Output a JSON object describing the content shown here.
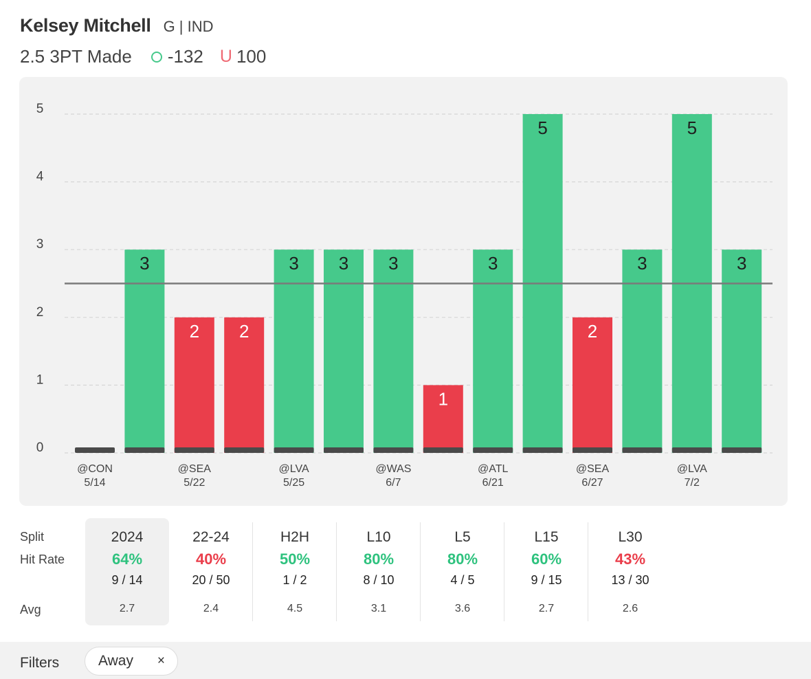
{
  "header": {
    "player_name": "Kelsey Mitchell",
    "position_team": "G | IND",
    "prop": "2.5 3PT Made",
    "over_odds": "-132",
    "under_icon": "U",
    "under_odds": "100"
  },
  "colors": {
    "over": "#46c98b",
    "under": "#ea3e4b",
    "over_text": "#2ec27e",
    "under_text": "#ea3e4b",
    "baseline_tick": "#4a4a4a",
    "line": "#7a7a7a",
    "grid": "#d6d6d6"
  },
  "chart_data": {
    "type": "bar",
    "title": "2.5 3PT Made",
    "prop_line": 2.5,
    "ylim": [
      0,
      5
    ],
    "yticks": [
      "0",
      "1",
      "2",
      "3",
      "4",
      "5"
    ],
    "grid": true,
    "categories": [
      "@CON 5/14",
      "",
      "@SEA 5/22",
      "",
      "@LVA 5/25",
      "",
      "@WAS 6/7",
      "",
      "@ATL 6/21",
      "",
      "@SEA 6/27",
      "",
      "@LVA 7/2",
      ""
    ],
    "tick_labels": [
      {
        "opp": "@CON",
        "date": "5/14"
      },
      {
        "opp": "",
        "date": ""
      },
      {
        "opp": "@SEA",
        "date": "5/22"
      },
      {
        "opp": "",
        "date": ""
      },
      {
        "opp": "@LVA",
        "date": "5/25"
      },
      {
        "opp": "",
        "date": ""
      },
      {
        "opp": "@WAS",
        "date": "6/7"
      },
      {
        "opp": "",
        "date": ""
      },
      {
        "opp": "@ATL",
        "date": "6/21"
      },
      {
        "opp": "",
        "date": ""
      },
      {
        "opp": "@SEA",
        "date": "6/27"
      },
      {
        "opp": "",
        "date": ""
      },
      {
        "opp": "@LVA",
        "date": "7/2"
      },
      {
        "opp": "",
        "date": ""
      }
    ],
    "values": [
      0,
      3,
      2,
      2,
      3,
      3,
      3,
      1,
      3,
      5,
      2,
      3,
      5,
      3
    ],
    "data_labels": [
      "",
      "3",
      "2",
      "2",
      "3",
      "3",
      "3",
      "1",
      "3",
      "5",
      "2",
      "3",
      "5",
      "3"
    ]
  },
  "splits": {
    "row_labels": {
      "split": "Split",
      "hit_rate": "Hit Rate",
      "avg": "Avg"
    },
    "columns": [
      {
        "name": "2024",
        "rate": "64%",
        "frac": "9 / 14",
        "avg": "2.7",
        "status": "over"
      },
      {
        "name": "22-24",
        "rate": "40%",
        "frac": "20 / 50",
        "avg": "2.4",
        "status": "under"
      },
      {
        "name": "H2H",
        "rate": "50%",
        "frac": "1 / 2",
        "avg": "4.5",
        "status": "over"
      },
      {
        "name": "L10",
        "rate": "80%",
        "frac": "8 / 10",
        "avg": "3.1",
        "status": "over"
      },
      {
        "name": "L5",
        "rate": "80%",
        "frac": "4 / 5",
        "avg": "3.6",
        "status": "over"
      },
      {
        "name": "L15",
        "rate": "60%",
        "frac": "9 / 15",
        "avg": "2.7",
        "status": "over"
      },
      {
        "name": "L30",
        "rate": "43%",
        "frac": "13 / 30",
        "avg": "2.6",
        "status": "under"
      }
    ]
  },
  "filters": {
    "label": "Filters",
    "chips": [
      {
        "label": "Away",
        "close": "×"
      }
    ]
  }
}
